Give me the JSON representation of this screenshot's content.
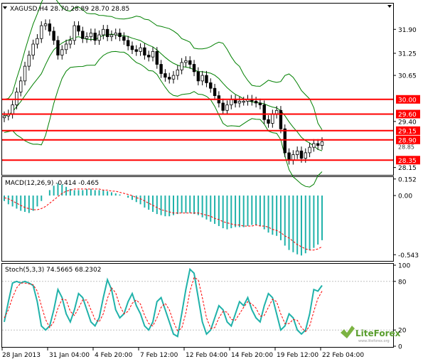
{
  "price_panel": {
    "symbol": "XAGUSD,H4",
    "ohlc": "28.70 28.89 28.70 28.85",
    "y_axis_ticks": [
      "31.90",
      "31.25",
      "30.65",
      "29.40",
      "28.15"
    ],
    "current_price": "28.85",
    "levels": [
      {
        "label": "30.00",
        "value": 30.0
      },
      {
        "label": "29.60",
        "value": 29.6
      },
      {
        "label": "29.15",
        "value": 29.15
      },
      {
        "label": "28.90",
        "value": 28.9
      },
      {
        "label": "28.35",
        "value": 28.35
      }
    ],
    "level_color": "#ff0000",
    "band_color": "#008000",
    "candle_up_color": "#ffffff",
    "candle_down_color": "#000000",
    "close_series": [
      29.55,
      29.6,
      29.85,
      30.2,
      30.5,
      30.9,
      31.2,
      31.5,
      31.65,
      32.0,
      32.05,
      31.85,
      31.6,
      31.2,
      31.35,
      31.5,
      31.6,
      32.0,
      31.85,
      31.65,
      31.7,
      31.8,
      31.6,
      31.75,
      31.9,
      31.7,
      31.75,
      31.8,
      31.7,
      31.6,
      31.45,
      31.35,
      31.3,
      31.4,
      31.2,
      31.15,
      31.3,
      30.95,
      30.7,
      30.6,
      30.55,
      30.65,
      30.8,
      31.0,
      31.05,
      30.95,
      30.75,
      30.5,
      30.65,
      30.45,
      30.3,
      30.1,
      29.9,
      29.7,
      29.85,
      30.0,
      29.9,
      29.95,
      29.95,
      30.0,
      29.95,
      29.9,
      29.85,
      29.45,
      29.35,
      29.6,
      29.7,
      29.2,
      28.55,
      28.35,
      28.5,
      28.6,
      28.4,
      28.55,
      28.7,
      28.8,
      28.75,
      28.85
    ]
  },
  "macd_panel": {
    "label": "MACD(12,26,9) -0.414 -0.465",
    "y_axis_ticks": [
      "0.152",
      "0.00",
      "-0.543"
    ],
    "histogram_color": "#20b2aa",
    "signal_color": "#ff0000",
    "ylim": [
      -0.6,
      0.17
    ],
    "histogram": [
      -0.05,
      -0.08,
      -0.1,
      -0.12,
      -0.14,
      -0.15,
      -0.16,
      -0.14,
      -0.1,
      -0.05,
      0.0,
      0.05,
      0.09,
      0.11,
      0.1,
      0.08,
      0.06,
      0.05,
      0.05,
      0.05,
      0.06,
      0.06,
      0.05,
      0.05,
      0.05,
      0.04,
      0.03,
      0.02,
      0.01,
      0.0,
      -0.02,
      -0.04,
      -0.06,
      -0.08,
      -0.11,
      -0.13,
      -0.15,
      -0.17,
      -0.18,
      -0.19,
      -0.19,
      -0.18,
      -0.17,
      -0.16,
      -0.16,
      -0.16,
      -0.17,
      -0.18,
      -0.2,
      -0.22,
      -0.24,
      -0.26,
      -0.28,
      -0.3,
      -0.31,
      -0.3,
      -0.29,
      -0.29,
      -0.29,
      -0.28,
      -0.27,
      -0.27,
      -0.28,
      -0.31,
      -0.34,
      -0.36,
      -0.37,
      -0.41,
      -0.46,
      -0.5,
      -0.52,
      -0.54,
      -0.55,
      -0.53,
      -0.5,
      -0.48,
      -0.45,
      -0.41
    ],
    "signal": [
      -0.02,
      -0.03,
      -0.05,
      -0.07,
      -0.09,
      -0.11,
      -0.12,
      -0.13,
      -0.13,
      -0.12,
      -0.1,
      -0.07,
      -0.04,
      -0.01,
      0.02,
      0.04,
      0.05,
      0.06,
      0.06,
      0.06,
      0.06,
      0.06,
      0.06,
      0.06,
      0.05,
      0.05,
      0.04,
      0.04,
      0.03,
      0.02,
      0.01,
      0.0,
      -0.02,
      -0.03,
      -0.05,
      -0.07,
      -0.09,
      -0.11,
      -0.13,
      -0.14,
      -0.15,
      -0.16,
      -0.16,
      -0.16,
      -0.16,
      -0.16,
      -0.16,
      -0.16,
      -0.17,
      -0.18,
      -0.19,
      -0.21,
      -0.22,
      -0.24,
      -0.25,
      -0.26,
      -0.27,
      -0.27,
      -0.28,
      -0.28,
      -0.28,
      -0.27,
      -0.28,
      -0.28,
      -0.29,
      -0.31,
      -0.32,
      -0.34,
      -0.37,
      -0.39,
      -0.42,
      -0.45,
      -0.47,
      -0.49,
      -0.5,
      -0.5,
      -0.49,
      -0.47
    ]
  },
  "stoch_panel": {
    "label": "Stoch(5,3,3) 74.5665 68.2302",
    "y_axis_ticks": [
      "100",
      "80",
      "20",
      "0"
    ],
    "main_color": "#20b2aa",
    "signal_color": "#ff0000",
    "ylim": [
      0,
      100
    ],
    "main": [
      30,
      55,
      78,
      80,
      78,
      80,
      78,
      75,
      55,
      25,
      20,
      25,
      45,
      70,
      60,
      40,
      30,
      45,
      65,
      60,
      45,
      30,
      25,
      35,
      60,
      82,
      70,
      45,
      35,
      40,
      55,
      65,
      50,
      40,
      25,
      20,
      30,
      55,
      60,
      45,
      30,
      15,
      12,
      40,
      70,
      95,
      90,
      60,
      30,
      15,
      20,
      35,
      50,
      45,
      30,
      25,
      40,
      55,
      50,
      60,
      45,
      35,
      30,
      50,
      65,
      60,
      40,
      20,
      25,
      40,
      35,
      20,
      15,
      20,
      40,
      70,
      68,
      75
    ],
    "signal": [
      35,
      45,
      60,
      72,
      78,
      78,
      77,
      76,
      68,
      50,
      33,
      23,
      30,
      47,
      58,
      57,
      43,
      38,
      47,
      57,
      57,
      45,
      33,
      30,
      40,
      59,
      72,
      66,
      50,
      40,
      43,
      53,
      57,
      52,
      38,
      28,
      25,
      35,
      48,
      53,
      45,
      30,
      19,
      22,
      41,
      68,
      85,
      82,
      60,
      35,
      22,
      23,
      35,
      43,
      42,
      33,
      32,
      40,
      48,
      55,
      52,
      47,
      37,
      38,
      48,
      58,
      55,
      40,
      28,
      28,
      33,
      32,
      23,
      18,
      25,
      43,
      59,
      68
    ]
  },
  "x_axis": {
    "labels": [
      "28 Jan 2013",
      "31 Jan 04:00",
      "4 Feb 20:00",
      "7 Feb 12:00",
      "12 Feb 04:00",
      "14 Feb 20:00",
      "19 Feb 12:00",
      "22 Feb 04:00"
    ]
  },
  "watermark": {
    "text": "LiteForex",
    "tagline": "www.liteforex.org"
  }
}
